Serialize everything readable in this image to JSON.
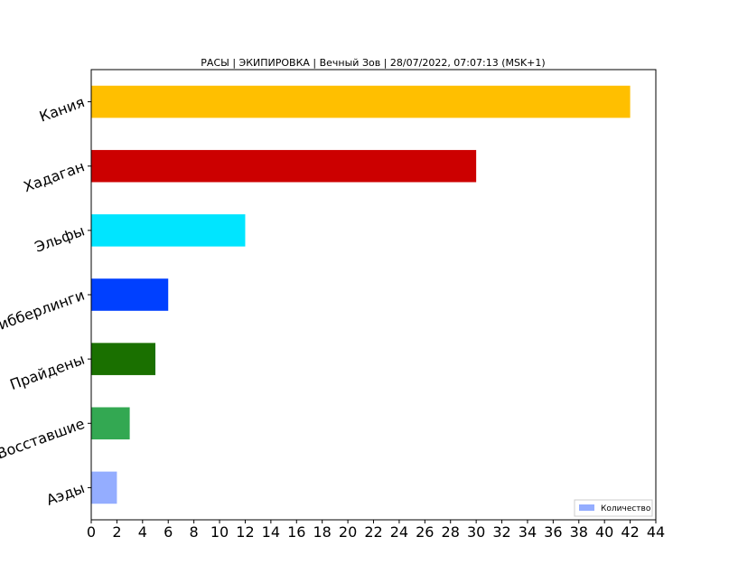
{
  "chart_data": {
    "type": "bar",
    "orientation": "horizontal",
    "title": "РАСЫ | ЭКИПИРОВКА | Вечный Зов | 28/07/2022, 07:07:13 (MSK+1)",
    "xlabel": "",
    "ylabel": "",
    "xlim": [
      0,
      44
    ],
    "xticks": [
      0,
      2,
      4,
      6,
      8,
      10,
      12,
      14,
      16,
      18,
      20,
      22,
      24,
      26,
      28,
      30,
      32,
      34,
      36,
      38,
      40,
      42,
      44
    ],
    "categories": [
      "Кания",
      "Хадаган",
      "Эльфы",
      "Гибберлинги",
      "Прайдены",
      "Восставшие",
      "Аэды"
    ],
    "values": [
      42,
      30,
      12,
      6,
      5,
      3,
      2
    ],
    "colors": [
      "#ffbf00",
      "#cc0000",
      "#00e5ff",
      "#0040ff",
      "#1a7000",
      "#33a852",
      "#94adff"
    ],
    "grid": false,
    "legend": {
      "position": "bottom-right",
      "label": "Количество",
      "color": "#94adff"
    }
  }
}
